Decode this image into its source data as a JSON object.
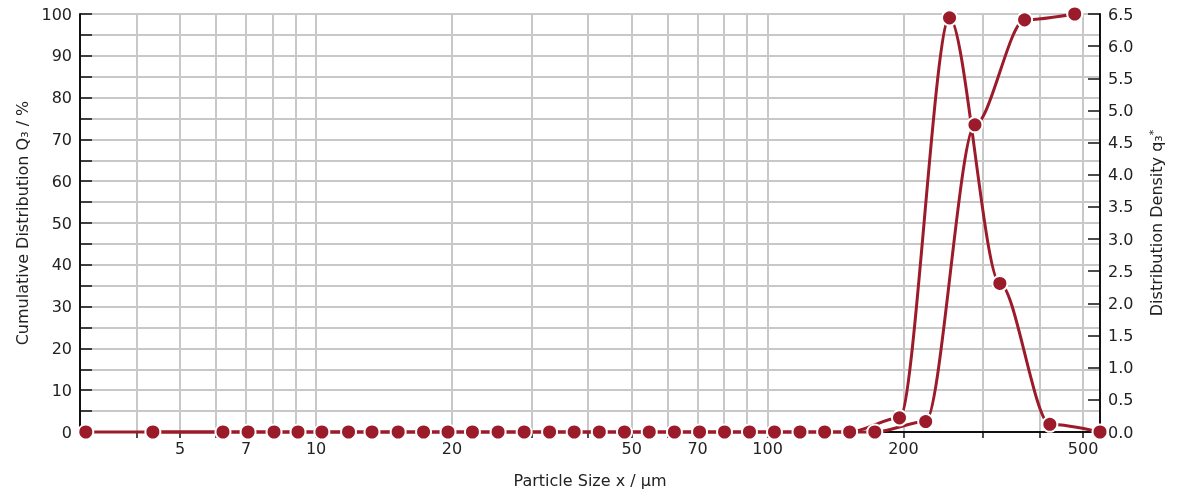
{
  "chart_data": {
    "type": "line",
    "xlabel": "Particle Size x / µm",
    "ylabel": "Cumulative Distribution Q₃ / %",
    "y2label": "Distribution Density q₃$^{*}$",
    "log": "x",
    "grid": true,
    "marker": "circle",
    "xlim": [
      3,
      545
    ],
    "xticks": [
      {
        "value": 4,
        "label": null
      },
      5,
      {
        "value": 6,
        "label": null
      },
      7,
      {
        "value": 8,
        "label": null
      },
      {
        "value": 9,
        "label": null
      },
      10,
      20,
      {
        "value": 30,
        "label": null
      },
      {
        "value": 40,
        "label": null
      },
      50,
      {
        "value": 60,
        "label": null
      },
      70,
      {
        "value": 80,
        "label": null
      },
      {
        "value": 90,
        "label": null
      },
      100,
      200,
      {
        "value": 300,
        "label": null
      },
      {
        "value": 400,
        "label": null
      },
      500
    ],
    "ylim": [
      0,
      100
    ],
    "yticks": [
      0,
      {
        "value": 5,
        "label": null
      },
      10,
      {
        "value": 15,
        "label": null
      },
      20,
      {
        "value": 25,
        "label": null
      },
      30,
      {
        "value": 35,
        "label": null
      },
      40,
      {
        "value": 45,
        "label": null
      },
      50,
      {
        "value": 55,
        "label": null
      },
      60,
      {
        "value": 65,
        "label": null
      },
      70,
      {
        "value": 75,
        "label": null
      },
      80,
      {
        "value": 85,
        "label": null
      },
      90,
      {
        "value": 95,
        "label": null
      },
      100
    ],
    "y2lim": [
      0,
      6.5
    ],
    "y2ticks": [
      {
        "value": 0,
        "label": "0.0"
      },
      0.5,
      {
        "value": 1,
        "label": "1.0"
      },
      1.5,
      {
        "value": 2,
        "label": "2.0"
      },
      2.5,
      {
        "value": 3,
        "label": "3.0"
      },
      3.5,
      {
        "value": 4,
        "label": "4.0"
      },
      4.5,
      {
        "value": 5,
        "label": "5.0"
      },
      5.5,
      {
        "value": 6,
        "label": "6.0"
      },
      6.5
    ],
    "series": [
      {
        "color": "#9b1b2a",
        "x": [
          3.09,
          6.22,
          8.07,
          10.3,
          13.3,
          17.3,
          22.2,
          28.9,
          37.3,
          48.2,
          62.2,
          80.3,
          103.6,
          133.8,
          172.8,
          224,
          288,
          371,
          479
        ],
        "values": [
          0,
          0,
          0,
          0,
          0,
          0,
          0,
          0,
          0,
          0,
          0,
          0,
          0,
          0,
          0,
          2.5,
          73.5,
          98.6,
          100
        ]
      },
      {
        "color": "#9b1b2a",
        "axis": "y2",
        "x": [
          4.35,
          7.07,
          9.12,
          11.8,
          15.2,
          19.6,
          25.3,
          32.9,
          42.4,
          54.7,
          70.7,
          91.2,
          118,
          152,
          196,
          253,
          327,
          422,
          545
        ],
        "values": [
          0,
          0,
          0,
          0,
          0,
          0,
          0,
          0,
          0,
          0,
          0,
          0,
          0,
          0,
          0.22,
          6.44,
          2.31,
          0.12,
          0
        ]
      }
    ]
  }
}
